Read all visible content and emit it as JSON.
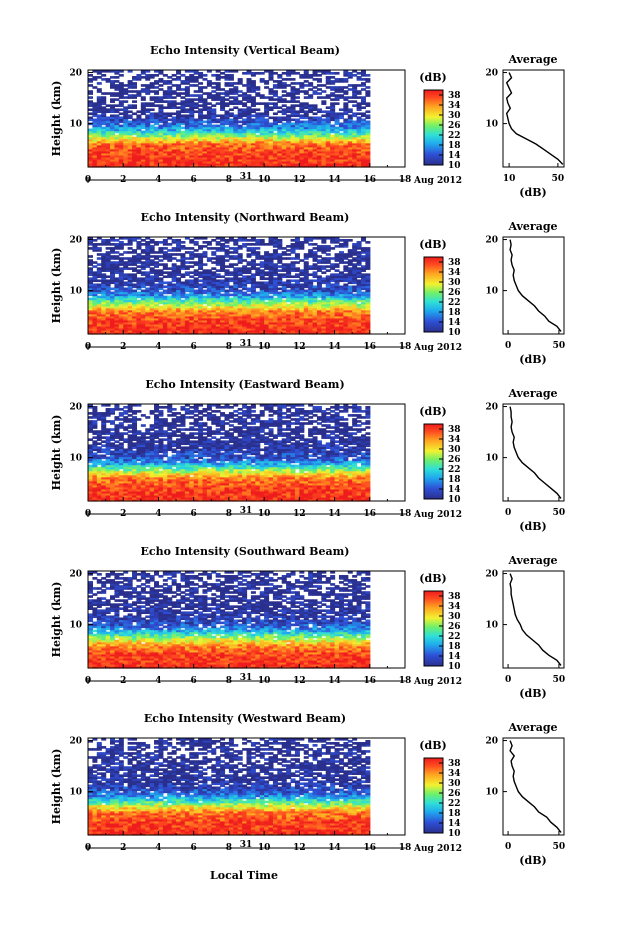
{
  "figure": {
    "bottom_label": "Local Time",
    "date_label": "Aug 2012",
    "day_label": "31"
  },
  "chart_data": [
    {
      "type": "heatmap",
      "title": "Echo Intensity (Vertical Beam)",
      "ylabel": "Height (km)",
      "xticks": [
        0,
        2,
        4,
        6,
        8,
        10,
        12,
        14,
        16,
        18
      ],
      "xlim": [
        0,
        18
      ],
      "data_end_x": 16,
      "yticks": [
        10,
        20
      ],
      "ylim": [
        1.5,
        20.5
      ],
      "colorbar": {
        "unit": "(dB)",
        "ticks": [
          10,
          14,
          18,
          22,
          26,
          30,
          34,
          38
        ],
        "range": [
          10,
          40
        ]
      },
      "profile": {
        "title": "Average",
        "xlabel": "(dB)",
        "xticks": [
          10,
          50
        ],
        "xlim": [
          5,
          55
        ],
        "heights": [
          2,
          3,
          4,
          5,
          6,
          7,
          8,
          9,
          10,
          11,
          12,
          13,
          14,
          15,
          16,
          17,
          18,
          19,
          20
        ],
        "values": [
          54,
          50,
          44,
          38,
          32,
          24,
          16,
          12,
          10,
          9,
          8,
          11,
          9,
          8,
          12,
          10,
          8,
          12,
          10
        ]
      },
      "intensity_profile": {
        "heights": [
          2,
          4,
          6,
          7,
          8,
          9,
          10,
          12,
          14,
          16,
          18,
          20
        ],
        "db": [
          39,
          38,
          36,
          30,
          24,
          18,
          15,
          10,
          9,
          10,
          9,
          10
        ]
      },
      "coverage_profile": {
        "heights": [
          2,
          6,
          8,
          10,
          12,
          14,
          16,
          18,
          20
        ],
        "fraction": [
          1,
          1,
          0.98,
          0.92,
          0.65,
          0.55,
          0.55,
          0.5,
          0.45
        ]
      }
    },
    {
      "type": "heatmap",
      "title": "Echo Intensity (Northward Beam)",
      "ylabel": "Height (km)",
      "xticks": [
        0,
        2,
        4,
        6,
        8,
        10,
        12,
        14,
        16,
        18
      ],
      "xlim": [
        0,
        18
      ],
      "data_end_x": 16,
      "yticks": [
        10,
        20
      ],
      "ylim": [
        1.5,
        20.5
      ],
      "colorbar": {
        "unit": "(dB)",
        "ticks": [
          10,
          14,
          18,
          22,
          26,
          30,
          34,
          38
        ],
        "range": [
          10,
          40
        ]
      },
      "profile": {
        "title": "Average",
        "xlabel": "(dB)",
        "xticks": [
          0,
          50
        ],
        "xlim": [
          -5,
          55
        ],
        "heights": [
          2,
          3,
          4,
          5,
          6,
          7,
          8,
          9,
          10,
          11,
          12,
          13,
          14,
          15,
          16,
          17,
          18,
          19,
          20
        ],
        "values": [
          52,
          48,
          40,
          36,
          30,
          26,
          20,
          14,
          10,
          8,
          6,
          5,
          6,
          4,
          3,
          4,
          2,
          3,
          2
        ]
      },
      "intensity_profile": {
        "heights": [
          2,
          4,
          6,
          7,
          8,
          9,
          10,
          12,
          14,
          16,
          18,
          20
        ],
        "db": [
          39,
          38,
          35,
          29,
          24,
          18,
          14,
          11,
          10,
          10,
          10,
          10
        ]
      },
      "coverage_profile": {
        "heights": [
          2,
          6,
          8,
          10,
          12,
          14,
          16,
          18,
          20
        ],
        "fraction": [
          1,
          1,
          0.96,
          0.9,
          0.8,
          0.7,
          0.62,
          0.55,
          0.5
        ]
      }
    },
    {
      "type": "heatmap",
      "title": "Echo Intensity (Eastward Beam)",
      "ylabel": "Height (km)",
      "xticks": [
        0,
        2,
        4,
        6,
        8,
        10,
        12,
        14,
        16,
        18
      ],
      "xlim": [
        0,
        18
      ],
      "data_end_x": 16,
      "yticks": [
        10,
        20
      ],
      "ylim": [
        1.5,
        20.5
      ],
      "colorbar": {
        "unit": "(dB)",
        "ticks": [
          10,
          14,
          18,
          22,
          26,
          30,
          34,
          38
        ],
        "range": [
          10,
          40
        ]
      },
      "profile": {
        "title": "Average",
        "xlabel": "(dB)",
        "xticks": [
          0,
          50
        ],
        "xlim": [
          -5,
          55
        ],
        "heights": [
          2,
          3,
          4,
          5,
          6,
          7,
          8,
          9,
          10,
          11,
          12,
          13,
          14,
          15,
          16,
          17,
          18,
          19,
          20
        ],
        "values": [
          52,
          48,
          42,
          36,
          30,
          26,
          20,
          14,
          10,
          8,
          6,
          5,
          6,
          4,
          3,
          4,
          3,
          3,
          2
        ]
      },
      "intensity_profile": {
        "heights": [
          2,
          4,
          6,
          7,
          8,
          9,
          10,
          12,
          14,
          16,
          18,
          20
        ],
        "db": [
          39,
          38,
          35,
          30,
          24,
          18,
          14,
          11,
          10,
          10,
          10,
          10
        ]
      },
      "coverage_profile": {
        "heights": [
          2,
          6,
          8,
          10,
          12,
          14,
          16,
          18,
          20
        ],
        "fraction": [
          1,
          1,
          0.96,
          0.9,
          0.82,
          0.72,
          0.64,
          0.56,
          0.5
        ]
      }
    },
    {
      "type": "heatmap",
      "title": "Echo Intensity (Southward Beam)",
      "ylabel": "Height (km)",
      "xticks": [
        0,
        2,
        4,
        6,
        8,
        10,
        12,
        14,
        16,
        18
      ],
      "xlim": [
        0,
        18
      ],
      "data_end_x": 16,
      "yticks": [
        10,
        20
      ],
      "ylim": [
        1.5,
        20.5
      ],
      "colorbar": {
        "unit": "(dB)",
        "ticks": [
          10,
          14,
          18,
          22,
          26,
          30,
          34,
          38
        ],
        "range": [
          10,
          40
        ]
      },
      "profile": {
        "title": "Average",
        "xlabel": "(dB)",
        "xticks": [
          0,
          50
        ],
        "xlim": [
          -5,
          55
        ],
        "heights": [
          2,
          3,
          4,
          5,
          6,
          7,
          8,
          9,
          10,
          11,
          12,
          13,
          14,
          15,
          16,
          17,
          18,
          19,
          20
        ],
        "values": [
          52,
          48,
          40,
          34,
          30,
          24,
          18,
          14,
          12,
          9,
          7,
          6,
          5,
          4,
          3,
          3,
          2,
          4,
          2
        ]
      },
      "intensity_profile": {
        "heights": [
          2,
          4,
          6,
          7,
          8,
          9,
          10,
          12,
          14,
          16,
          18,
          20
        ],
        "db": [
          39,
          38,
          34,
          29,
          24,
          18,
          14,
          11,
          10,
          10,
          10,
          10
        ]
      },
      "coverage_profile": {
        "heights": [
          2,
          6,
          8,
          10,
          12,
          14,
          16,
          18,
          20
        ],
        "fraction": [
          1,
          1,
          0.96,
          0.9,
          0.8,
          0.7,
          0.62,
          0.56,
          0.52
        ]
      }
    },
    {
      "type": "heatmap",
      "title": "Echo Intensity (Westward Beam)",
      "ylabel": "Height (km)",
      "xticks": [
        0,
        2,
        4,
        6,
        8,
        10,
        12,
        14,
        16,
        18
      ],
      "xlim": [
        0,
        18
      ],
      "data_end_x": 16,
      "yticks": [
        10,
        20
      ],
      "ylim": [
        1.5,
        20.5
      ],
      "colorbar": {
        "unit": "(dB)",
        "ticks": [
          10,
          14,
          18,
          22,
          26,
          30,
          34,
          38
        ],
        "range": [
          10,
          40
        ]
      },
      "profile": {
        "title": "Average",
        "xlabel": "(dB)",
        "xticks": [
          0,
          50
        ],
        "xlim": [
          -5,
          55
        ],
        "heights": [
          2,
          3,
          4,
          5,
          6,
          7,
          8,
          9,
          10,
          11,
          12,
          13,
          14,
          15,
          16,
          17,
          18,
          19,
          20
        ],
        "values": [
          52,
          48,
          42,
          38,
          30,
          26,
          20,
          14,
          10,
          8,
          6,
          5,
          6,
          4,
          3,
          6,
          2,
          4,
          2
        ]
      },
      "intensity_profile": {
        "heights": [
          2,
          4,
          6,
          7,
          8,
          9,
          10,
          12,
          14,
          16,
          18,
          20
        ],
        "db": [
          39,
          38,
          35,
          30,
          24,
          18,
          14,
          11,
          10,
          10,
          10,
          10
        ]
      },
      "coverage_profile": {
        "heights": [
          2,
          6,
          8,
          10,
          12,
          14,
          16,
          18,
          20
        ],
        "fraction": [
          1,
          1,
          0.96,
          0.9,
          0.8,
          0.72,
          0.62,
          0.56,
          0.5
        ]
      }
    }
  ]
}
